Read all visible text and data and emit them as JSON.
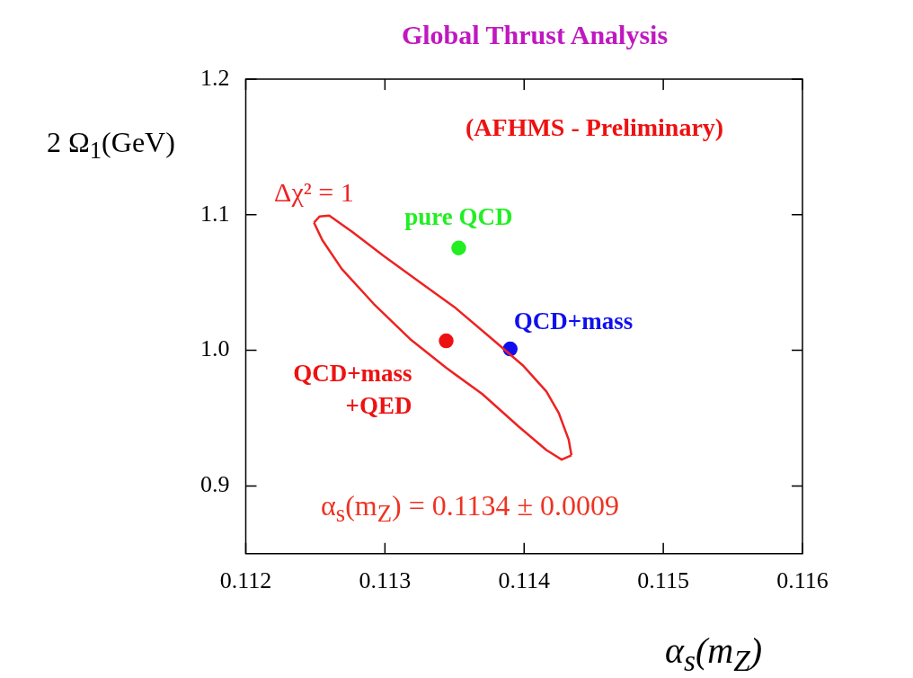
{
  "chart_data": {
    "type": "scatter",
    "title": "Global Thrust Analysis",
    "xlabel": "α$_{s}$(m$_{Z}$)",
    "ylabel": "2 Ω$_{1}$(GeV)",
    "annotations": [
      "(AFHMS - Preliminary)",
      "α$_{s}$(m$_{Z}$) = 0.1134 ± 0.0009"
    ],
    "xlim": [
      0.112,
      0.116
    ],
    "xticks": [
      0.112,
      0.113,
      0.114,
      0.115,
      0.116
    ],
    "ylim": [
      0.85,
      1.2
    ],
    "yticks": [
      {
        "value": 0.9,
        "label": "0.9"
      },
      {
        "value": 1,
        "label": "1.0"
      },
      {
        "value": 1.1,
        "label": "1.1"
      },
      {
        "value": 1.2,
        "label": "1.2"
      }
    ],
    "marker": "circle",
    "grid": false,
    "legend": false,
    "series": [
      {
        "name": "pure QCD",
        "color": "#22ee22",
        "x": [
          0.11353
        ],
        "values": [
          1.0755
        ]
      },
      {
        "name": "QCD+mass",
        "color": "#1010ee",
        "x": [
          0.1139
        ],
        "values": [
          1.001
        ]
      },
      {
        "name": "QCD+mass +QED",
        "color": "#ee1111",
        "x": [
          0.11344
        ],
        "values": [
          1.007
        ]
      },
      {
        "type": "line",
        "marker": "none",
        "name": "Δχ² = 1",
        "color": "#ee2222",
        "x": [
          0.11249,
          0.11253,
          0.1126,
          0.11276,
          0.11299,
          0.11325,
          0.11351,
          0.11377,
          0.11399,
          0.11416,
          0.11425,
          0.11432,
          0.11434
        ],
        "values": [
          1.0942,
          1.0987,
          1.0994,
          1.0877,
          1.0697,
          1.0503,
          1.031,
          1.0084,
          0.989,
          0.9697,
          0.9535,
          0.9342,
          0.9226
        ]
      },
      {
        "type": "line",
        "marker": "none",
        "color": "#ee2222",
        "x": [
          0.11434,
          0.11427,
          0.11416,
          0.11396,
          0.1137,
          0.11344,
          0.11318,
          0.11292,
          0.11269,
          0.11255,
          0.11249
        ],
        "values": [
          0.9226,
          0.9194,
          0.9265,
          0.9439,
          0.9677,
          0.9871,
          1.0084,
          1.0342,
          1.06,
          1.0813,
          1.0942
        ]
      }
    ]
  }
}
